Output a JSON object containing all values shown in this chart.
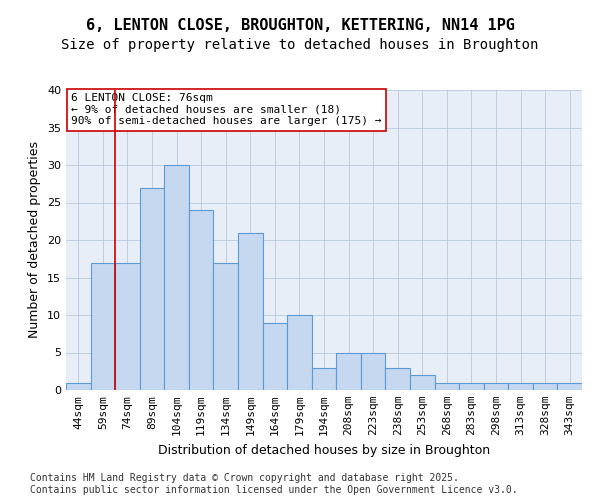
{
  "title_line1": "6, LENTON CLOSE, BROUGHTON, KETTERING, NN14 1PG",
  "title_line2": "Size of property relative to detached houses in Broughton",
  "xlabel": "Distribution of detached houses by size in Broughton",
  "ylabel": "Number of detached properties",
  "categories": [
    "44sqm",
    "59sqm",
    "74sqm",
    "89sqm",
    "104sqm",
    "119sqm",
    "134sqm",
    "149sqm",
    "164sqm",
    "179sqm",
    "194sqm",
    "208sqm",
    "223sqm",
    "238sqm",
    "253sqm",
    "268sqm",
    "283sqm",
    "298sqm",
    "313sqm",
    "328sqm",
    "343sqm"
  ],
  "values": [
    1,
    17,
    17,
    27,
    30,
    24,
    17,
    21,
    9,
    10,
    3,
    5,
    5,
    3,
    2,
    1,
    1,
    1,
    1,
    1,
    1
  ],
  "bar_color": "#c5d8f0",
  "bar_edge_color": "#5b9bd5",
  "background_color": "#e8eef7",
  "vline_x": 1.5,
  "vline_color": "#cc0000",
  "annotation_text": "6 LENTON CLOSE: 76sqm\n← 9% of detached houses are smaller (18)\n90% of semi-detached houses are larger (175) →",
  "annotation_box_color": "#ffffff",
  "annotation_box_edge": "#cc0000",
  "ylim": [
    0,
    40
  ],
  "yticks": [
    0,
    5,
    10,
    15,
    20,
    25,
    30,
    35,
    40
  ],
  "footnote": "Contains HM Land Registry data © Crown copyright and database right 2025.\nContains public sector information licensed under the Open Government Licence v3.0.",
  "title_fontsize": 11,
  "subtitle_fontsize": 10,
  "axis_label_fontsize": 9,
  "tick_fontsize": 8,
  "annotation_fontsize": 8,
  "footnote_fontsize": 7
}
